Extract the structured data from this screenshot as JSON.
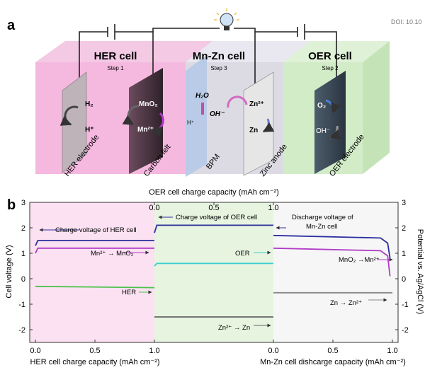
{
  "doi": "DOI: 10.10",
  "panel_a": {
    "label": "a",
    "cells": [
      {
        "title": "HER cell",
        "step": "Step 1"
      },
      {
        "title": "Mn-Zn cell",
        "step": "Step 3"
      },
      {
        "title": "OER cell",
        "step": "Step 2"
      }
    ],
    "species": {
      "h2": "H₂",
      "hplus": "H⁺",
      "mno2": "MnO₂",
      "mn2plus": "Mn²⁺",
      "h2o": "H₂O",
      "hplus_bpm": "H⁺",
      "ohminus_bpm": "OH⁻",
      "zn2plus": "Zn²⁺",
      "zn": "Zn",
      "o2": "O₂",
      "ohminus": "OH⁻"
    },
    "electrodes": [
      "HER electrode",
      "Carbon felt",
      "BPM",
      "Zinc anode",
      "OER electrode"
    ]
  },
  "panel_b": {
    "label": "b",
    "top_axis_label": "OER cell charge capacity (mAh cm⁻²)",
    "left_axis_label": "Cell voltage (V)",
    "right_axis_label": "Potential vs. Ag/AgCl (V)",
    "bottom_left_label": "HER cell charge capacity (mAh cm⁻²)",
    "bottom_right_label": "Mn-Zn cell dishcarge capacity (mAh cm⁻²)",
    "annotations": {
      "her_charge": "Charge voltage of HER cell",
      "oer_charge": "Charge voltage of OER cell",
      "discharge_1": "Discharge voltage of",
      "discharge_2": "Mn-Zn cell",
      "mn_to_mno2": "Mn²⁺ → MnO₂",
      "oer": "OER",
      "mno2_to_mn": "MnO₂ →Mn²⁺",
      "her": "HER",
      "zn2_to_zn": "Zn²⁺ → Zn",
      "zn_to_zn2": "Zn → Zn²⁺"
    }
  },
  "chart_data": {
    "type": "line",
    "ylim": [
      -2.5,
      3
    ],
    "yticks": [
      "3",
      "2",
      "1",
      "0",
      "-1",
      "-2"
    ],
    "top_ticks": [
      "0.0",
      "0.5",
      "1.0"
    ],
    "bottom_left_ticks": [
      "0.0",
      "0.5",
      "1.0"
    ],
    "bottom_right_ticks": [
      "0.0",
      "0.5",
      "1.0"
    ],
    "series": [
      {
        "segment": "HER",
        "x": [
          0.0,
          0.02,
          1.0
        ],
        "y": [
          1.3,
          1.5,
          1.5
        ],
        "color": "#2b2e9e"
      },
      {
        "segment": "HER",
        "x": [
          0.0,
          0.02,
          1.0
        ],
        "y": [
          1.0,
          1.2,
          1.2
        ],
        "color": "#b03ac6"
      },
      {
        "segment": "HER",
        "x": [
          0.0,
          1.0
        ],
        "y": [
          -0.3,
          -0.35
        ],
        "color": "#4cc24c"
      },
      {
        "segment": "OER",
        "x": [
          0.0,
          0.02,
          1.0
        ],
        "y": [
          1.8,
          2.1,
          2.1
        ],
        "color": "#2b2e9e"
      },
      {
        "segment": "OER",
        "x": [
          0.0,
          0.02,
          1.0
        ],
        "y": [
          0.5,
          0.6,
          0.6
        ],
        "color": "#38d0d0"
      },
      {
        "segment": "OER",
        "x": [
          0.0,
          1.0
        ],
        "y": [
          -1.5,
          -1.5
        ],
        "color": "#666666"
      },
      {
        "segment": "Mn-Zn",
        "x": [
          0.0,
          0.9,
          0.96,
          0.98
        ],
        "y": [
          1.7,
          1.6,
          1.4,
          0.8
        ],
        "color": "#2b2e9e"
      },
      {
        "segment": "Mn-Zn",
        "x": [
          0.0,
          0.9,
          0.96,
          0.98
        ],
        "y": [
          1.2,
          1.1,
          0.9,
          0.1
        ],
        "color": "#b03ac6"
      },
      {
        "segment": "Mn-Zn",
        "x": [
          0.0,
          1.0
        ],
        "y": [
          -0.55,
          -0.55
        ],
        "color": "#888888"
      }
    ]
  }
}
